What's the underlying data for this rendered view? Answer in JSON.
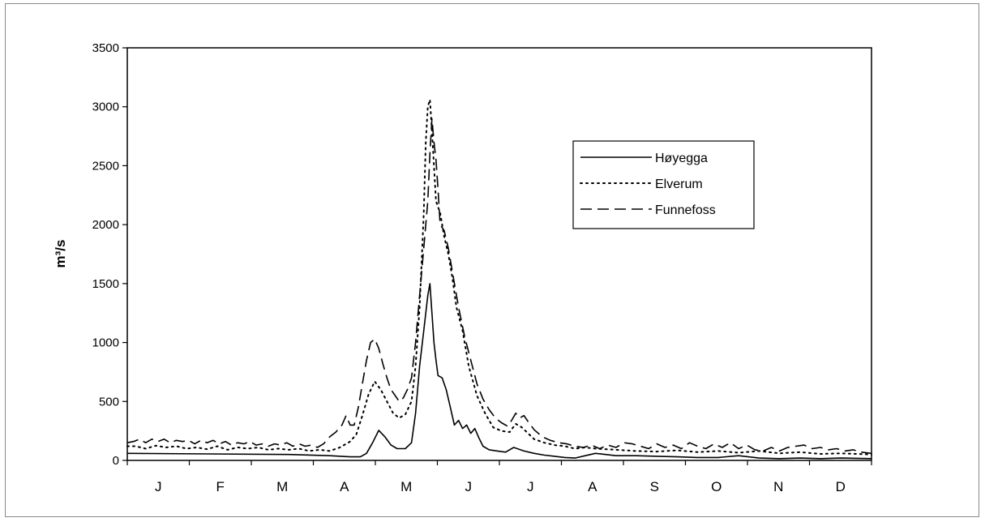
{
  "chart_data": {
    "type": "line",
    "title": "",
    "xlabel": "",
    "ylabel": "m³/s",
    "ylim": [
      0,
      3500
    ],
    "yticks": [
      0,
      500,
      1000,
      1500,
      2000,
      2500,
      3000,
      3500
    ],
    "months": [
      "J",
      "F",
      "M",
      "A",
      "M",
      "J",
      "J",
      "A",
      "S",
      "O",
      "N",
      "D"
    ],
    "xlim_day": [
      1,
      365
    ],
    "grid": false,
    "legend_position": "right",
    "series": [
      {
        "name": "Høyegga",
        "style": "solid",
        "points": [
          [
            1,
            60
          ],
          [
            40,
            55
          ],
          [
            80,
            50
          ],
          [
            100,
            40
          ],
          [
            110,
            30
          ],
          [
            115,
            30
          ],
          [
            118,
            60
          ],
          [
            121,
            150
          ],
          [
            124,
            255
          ],
          [
            127,
            200
          ],
          [
            130,
            130
          ],
          [
            133,
            100
          ],
          [
            137,
            100
          ],
          [
            140,
            150
          ],
          [
            142,
            400
          ],
          [
            144,
            800
          ],
          [
            146,
            1100
          ],
          [
            148,
            1400
          ],
          [
            149,
            1500
          ],
          [
            150,
            1250
          ],
          [
            151,
            1000
          ],
          [
            152,
            850
          ],
          [
            153,
            720
          ],
          [
            155,
            700
          ],
          [
            157,
            600
          ],
          [
            159,
            450
          ],
          [
            161,
            300
          ],
          [
            163,
            340
          ],
          [
            165,
            270
          ],
          [
            167,
            300
          ],
          [
            169,
            230
          ],
          [
            171,
            270
          ],
          [
            173,
            190
          ],
          [
            175,
            120
          ],
          [
            178,
            90
          ],
          [
            182,
            80
          ],
          [
            186,
            70
          ],
          [
            190,
            110
          ],
          [
            195,
            80
          ],
          [
            200,
            60
          ],
          [
            205,
            45
          ],
          [
            210,
            35
          ],
          [
            215,
            25
          ],
          [
            220,
            20
          ],
          [
            225,
            40
          ],
          [
            230,
            60
          ],
          [
            235,
            50
          ],
          [
            240,
            40
          ],
          [
            250,
            40
          ],
          [
            260,
            35
          ],
          [
            270,
            30
          ],
          [
            280,
            25
          ],
          [
            290,
            25
          ],
          [
            300,
            40
          ],
          [
            310,
            20
          ],
          [
            320,
            15
          ],
          [
            330,
            20
          ],
          [
            340,
            15
          ],
          [
            350,
            20
          ],
          [
            365,
            15
          ]
        ]
      },
      {
        "name": "Elverum",
        "style": "dotted",
        "points": [
          [
            1,
            120
          ],
          [
            5,
            120
          ],
          [
            10,
            100
          ],
          [
            15,
            125
          ],
          [
            20,
            110
          ],
          [
            25,
            120
          ],
          [
            30,
            100
          ],
          [
            35,
            110
          ],
          [
            40,
            95
          ],
          [
            45,
            120
          ],
          [
            50,
            90
          ],
          [
            55,
            110
          ],
          [
            60,
            100
          ],
          [
            65,
            110
          ],
          [
            70,
            90
          ],
          [
            75,
            100
          ],
          [
            80,
            90
          ],
          [
            85,
            100
          ],
          [
            90,
            80
          ],
          [
            95,
            90
          ],
          [
            100,
            80
          ],
          [
            105,
            110
          ],
          [
            110,
            160
          ],
          [
            113,
            220
          ],
          [
            116,
            380
          ],
          [
            119,
            560
          ],
          [
            122,
            670
          ],
          [
            125,
            600
          ],
          [
            128,
            500
          ],
          [
            131,
            400
          ],
          [
            134,
            360
          ],
          [
            137,
            390
          ],
          [
            140,
            500
          ],
          [
            142,
            800
          ],
          [
            144,
            1300
          ],
          [
            145,
            1700
          ],
          [
            146,
            2100
          ],
          [
            147,
            2700
          ],
          [
            148,
            3000
          ],
          [
            149,
            3060
          ],
          [
            150,
            2800
          ],
          [
            151,
            2500
          ],
          [
            152,
            2200
          ],
          [
            154,
            2100
          ],
          [
            156,
            1900
          ],
          [
            158,
            1750
          ],
          [
            160,
            1550
          ],
          [
            162,
            1300
          ],
          [
            165,
            1100
          ],
          [
            168,
            800
          ],
          [
            172,
            550
          ],
          [
            176,
            400
          ],
          [
            180,
            280
          ],
          [
            184,
            250
          ],
          [
            188,
            240
          ],
          [
            191,
            310
          ],
          [
            194,
            280
          ],
          [
            197,
            230
          ],
          [
            200,
            180
          ],
          [
            205,
            150
          ],
          [
            210,
            130
          ],
          [
            215,
            120
          ],
          [
            220,
            100
          ],
          [
            225,
            110
          ],
          [
            230,
            100
          ],
          [
            240,
            90
          ],
          [
            250,
            80
          ],
          [
            260,
            75
          ],
          [
            270,
            85
          ],
          [
            280,
            70
          ],
          [
            290,
            80
          ],
          [
            300,
            65
          ],
          [
            310,
            80
          ],
          [
            320,
            60
          ],
          [
            330,
            70
          ],
          [
            340,
            55
          ],
          [
            350,
            60
          ],
          [
            365,
            50
          ]
        ]
      },
      {
        "name": "Funnefoss",
        "style": "dashed",
        "points": [
          [
            1,
            150
          ],
          [
            4,
            160
          ],
          [
            7,
            180
          ],
          [
            10,
            150
          ],
          [
            13,
            180
          ],
          [
            16,
            160
          ],
          [
            19,
            180
          ],
          [
            22,
            150
          ],
          [
            25,
            170
          ],
          [
            28,
            160
          ],
          [
            31,
            170
          ],
          [
            34,
            140
          ],
          [
            37,
            170
          ],
          [
            40,
            150
          ],
          [
            43,
            170
          ],
          [
            46,
            140
          ],
          [
            49,
            160
          ],
          [
            52,
            130
          ],
          [
            55,
            150
          ],
          [
            58,
            140
          ],
          [
            61,
            160
          ],
          [
            64,
            130
          ],
          [
            67,
            140
          ],
          [
            70,
            120
          ],
          [
            73,
            140
          ],
          [
            76,
            130
          ],
          [
            79,
            150
          ],
          [
            82,
            120
          ],
          [
            85,
            140
          ],
          [
            88,
            120
          ],
          [
            91,
            130
          ],
          [
            94,
            110
          ],
          [
            97,
            140
          ],
          [
            100,
            200
          ],
          [
            103,
            240
          ],
          [
            106,
            300
          ],
          [
            108,
            380
          ],
          [
            110,
            300
          ],
          [
            112,
            300
          ],
          [
            114,
            450
          ],
          [
            116,
            650
          ],
          [
            118,
            850
          ],
          [
            120,
            1000
          ],
          [
            122,
            1030
          ],
          [
            124,
            950
          ],
          [
            126,
            820
          ],
          [
            128,
            700
          ],
          [
            130,
            600
          ],
          [
            132,
            550
          ],
          [
            134,
            500
          ],
          [
            136,
            530
          ],
          [
            138,
            600
          ],
          [
            140,
            700
          ],
          [
            142,
            1000
          ],
          [
            144,
            1400
          ],
          [
            146,
            1800
          ],
          [
            148,
            2200
          ],
          [
            149,
            2600
          ],
          [
            150,
            2900
          ],
          [
            151,
            2700
          ],
          [
            152,
            2550
          ],
          [
            153,
            2300
          ],
          [
            154,
            2000
          ],
          [
            156,
            1950
          ],
          [
            158,
            1800
          ],
          [
            160,
            1600
          ],
          [
            163,
            1300
          ],
          [
            166,
            1050
          ],
          [
            169,
            850
          ],
          [
            172,
            650
          ],
          [
            175,
            520
          ],
          [
            178,
            430
          ],
          [
            181,
            360
          ],
          [
            184,
            320
          ],
          [
            187,
            290
          ],
          [
            189,
            340
          ],
          [
            191,
            400
          ],
          [
            193,
            360
          ],
          [
            195,
            380
          ],
          [
            197,
            330
          ],
          [
            200,
            260
          ],
          [
            204,
            200
          ],
          [
            208,
            170
          ],
          [
            212,
            150
          ],
          [
            216,
            140
          ],
          [
            220,
            120
          ],
          [
            224,
            110
          ],
          [
            228,
            130
          ],
          [
            232,
            100
          ],
          [
            236,
            130
          ],
          [
            240,
            110
          ],
          [
            244,
            150
          ],
          [
            248,
            140
          ],
          [
            252,
            120
          ],
          [
            256,
            100
          ],
          [
            260,
            140
          ],
          [
            264,
            110
          ],
          [
            268,
            130
          ],
          [
            272,
            100
          ],
          [
            276,
            150
          ],
          [
            280,
            120
          ],
          [
            284,
            100
          ],
          [
            288,
            140
          ],
          [
            292,
            110
          ],
          [
            296,
            150
          ],
          [
            300,
            100
          ],
          [
            304,
            130
          ],
          [
            308,
            90
          ],
          [
            312,
            80
          ],
          [
            316,
            110
          ],
          [
            320,
            80
          ],
          [
            324,
            110
          ],
          [
            328,
            120
          ],
          [
            332,
            130
          ],
          [
            336,
            100
          ],
          [
            340,
            110
          ],
          [
            344,
            90
          ],
          [
            348,
            100
          ],
          [
            352,
            80
          ],
          [
            356,
            90
          ],
          [
            360,
            70
          ],
          [
            365,
            60
          ]
        ]
      }
    ]
  }
}
